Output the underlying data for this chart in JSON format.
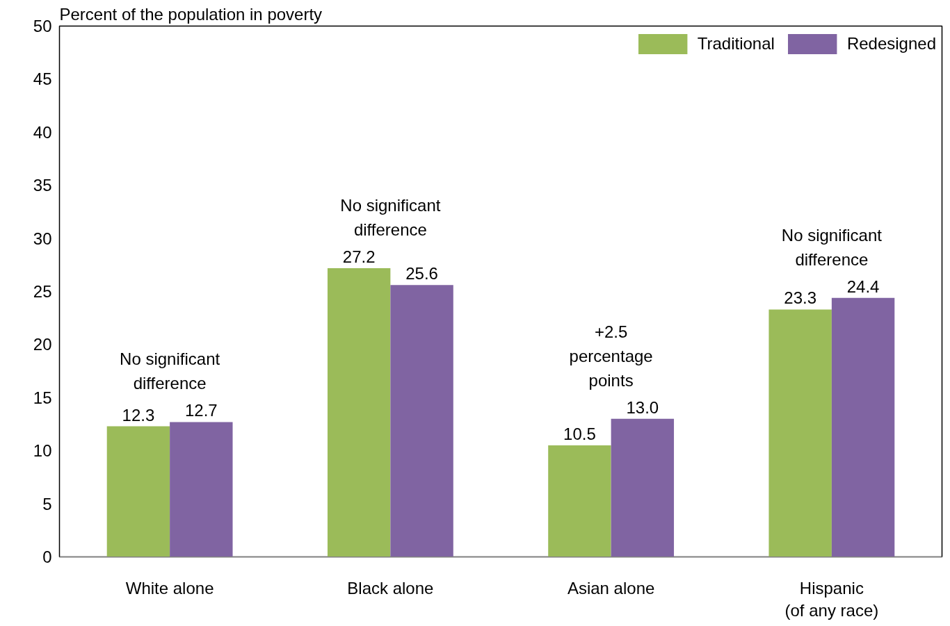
{
  "chart_data": {
    "type": "bar",
    "ylabel": "Percent of the population in poverty",
    "categories": [
      "White alone",
      "Black alone",
      "Asian alone",
      "Hispanic\n(of any race)"
    ],
    "series": [
      {
        "name": "Traditional",
        "color": "#9bbb59",
        "values": [
          12.3,
          27.2,
          10.5,
          23.3
        ]
      },
      {
        "name": "Redesigned",
        "color": "#8064a2",
        "values": [
          12.7,
          25.6,
          13.0,
          24.4
        ]
      }
    ],
    "ylim": [
      0,
      50
    ],
    "yticks": [
      0,
      5,
      10,
      15,
      20,
      25,
      30,
      35,
      40,
      45,
      50
    ],
    "grid": false,
    "legend": "top right",
    "value_labels": [
      [
        "12.3",
        "27.2",
        "10.5",
        "23.3"
      ],
      [
        "12.7",
        "25.6",
        "13.0",
        "24.4"
      ]
    ],
    "annotations": [
      "No significant\ndifference",
      "No significant\ndifference",
      "+2.5\npercentage\npoints",
      "No significant\ndifference"
    ]
  }
}
